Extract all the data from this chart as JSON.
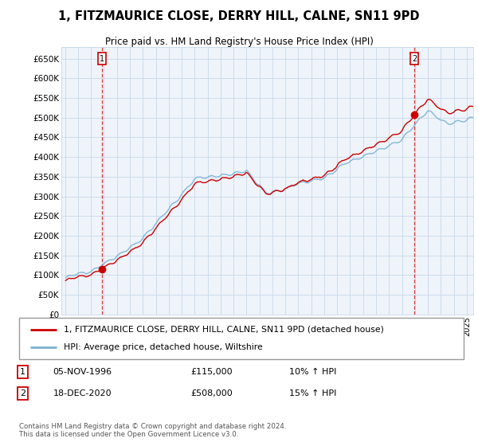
{
  "title": "1, FITZMAURICE CLOSE, DERRY HILL, CALNE, SN11 9PD",
  "subtitle": "Price paid vs. HM Land Registry's House Price Index (HPI)",
  "ylim": [
    0,
    680000
  ],
  "yticks": [
    0,
    50000,
    100000,
    150000,
    200000,
    250000,
    300000,
    350000,
    400000,
    450000,
    500000,
    550000,
    600000,
    650000
  ],
  "ytick_labels": [
    "£0",
    "£50K",
    "£100K",
    "£150K",
    "£200K",
    "£250K",
    "£300K",
    "£350K",
    "£400K",
    "£450K",
    "£500K",
    "£550K",
    "£600K",
    "£650K"
  ],
  "legend_label_red": "1, FITZMAURICE CLOSE, DERRY HILL, CALNE, SN11 9PD (detached house)",
  "legend_label_blue": "HPI: Average price, detached house, Wiltshire",
  "annotation1_label": "1",
  "annotation1_date": "05-NOV-1996",
  "annotation1_price": "£115,000",
  "annotation1_hpi": "10% ↑ HPI",
  "annotation2_label": "2",
  "annotation2_date": "18-DEC-2020",
  "annotation2_price": "£508,000",
  "annotation2_hpi": "15% ↑ HPI",
  "footer": "Contains HM Land Registry data © Crown copyright and database right 2024.\nThis data is licensed under the Open Government Licence v3.0.",
  "sale1_year": 1996.854,
  "sale1_value": 115000,
  "sale2_year": 2020.962,
  "sale2_value": 508000,
  "red_color": "#cc0000",
  "blue_color": "#7ab0d4",
  "grid_color": "#c8d8e8",
  "bg_color": "#ffffff",
  "plot_bg": "#eef4fa",
  "xlim_left": 1993.7,
  "xlim_right": 2025.5
}
